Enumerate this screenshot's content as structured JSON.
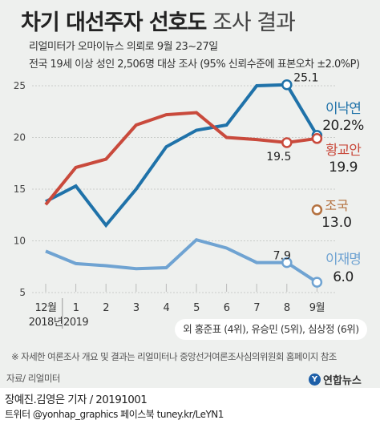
{
  "title_bold": "차기 대선주자 선호도",
  "title_light": "조사 결과",
  "subtitle_1": "리얼미터가 오마이뉴스 의뢰로 9월 23~27일",
  "subtitle_2": "전국 19세 이상 성인 2,506명 대상 조사 (95% 신뢰수준에 표본오차 ±2.0%P)",
  "others_note": "외 홍준표 (4위), 유승민 (5위), 심상정 (6위)",
  "footnote": "※ 자세한 여론조사 개요 및 결과는 리얼미터나 중앙선거여론조사심의위원회 홈페이지 참조",
  "source": "자료/ 리얼미터",
  "logo_mark": "Y",
  "logo_text": "연합뉴스",
  "credit": "장예진.김영은 기자 / 20191001",
  "social": "트위터 @yonhap_graphics  페이스북 tuney.kr/LeYN1",
  "chart_data": {
    "type": "line",
    "categories": [
      "12월\n2018년",
      "1\n2019",
      "2",
      "3",
      "4",
      "5",
      "6",
      "7",
      "8",
      "9월"
    ],
    "ylim": [
      4,
      27
    ],
    "yticks": [
      5,
      10,
      15,
      20,
      25
    ],
    "grid": true,
    "series": [
      {
        "name": "이낙연",
        "color": "#1f72a9",
        "values": [
          13.8,
          15.3,
          11.5,
          15.0,
          19.1,
          20.7,
          21.2,
          25.0,
          25.1,
          20.2
        ],
        "end_label": "20.2%",
        "peak_index": 8,
        "peak_label": "25.1"
      },
      {
        "name": "황교안",
        "color": "#c94a3c",
        "values": [
          13.5,
          17.1,
          17.9,
          21.2,
          22.2,
          22.4,
          20.0,
          19.8,
          19.5,
          19.9
        ],
        "end_label": "19.9",
        "peak_index": 8,
        "peak_label": "19.5"
      },
      {
        "name": "이재명",
        "color": "#6fa3d2",
        "values": [
          9.0,
          7.8,
          7.6,
          7.3,
          7.4,
          10.1,
          9.3,
          7.9,
          7.9,
          6.0
        ],
        "end_label": "6.0",
        "peak_index": 8,
        "peak_label": "7.9"
      }
    ],
    "single_points": [
      {
        "name": "조국",
        "color": "#b4713f",
        "index": 9,
        "value": 13.0,
        "label": "13.0"
      }
    ]
  }
}
